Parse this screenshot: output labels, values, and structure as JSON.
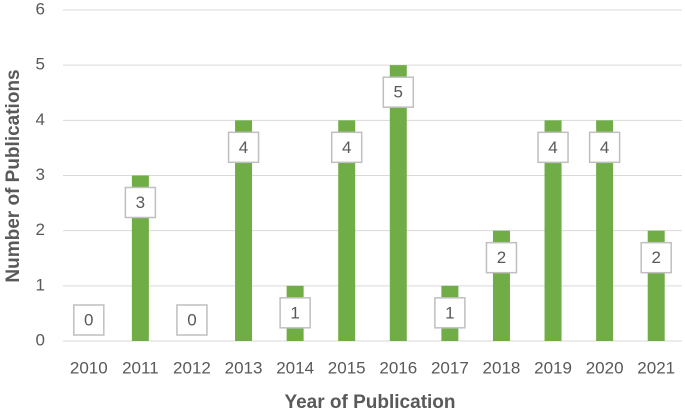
{
  "chart_data": {
    "type": "bar",
    "x_label": "Year of Publication",
    "y_label": "Number of Publications",
    "categories": [
      "2010",
      "2011",
      "2012",
      "2013",
      "2014",
      "2015",
      "2016",
      "2017",
      "2018",
      "2019",
      "2020",
      "2021"
    ],
    "values": [
      0,
      3,
      0,
      4,
      1,
      4,
      5,
      1,
      2,
      4,
      4,
      2
    ],
    "color": "#70ad47",
    "ylim": [
      0,
      6
    ],
    "yticks": [
      0,
      1,
      2,
      3,
      4,
      5,
      6
    ],
    "grid": true,
    "data_labels": true
  }
}
